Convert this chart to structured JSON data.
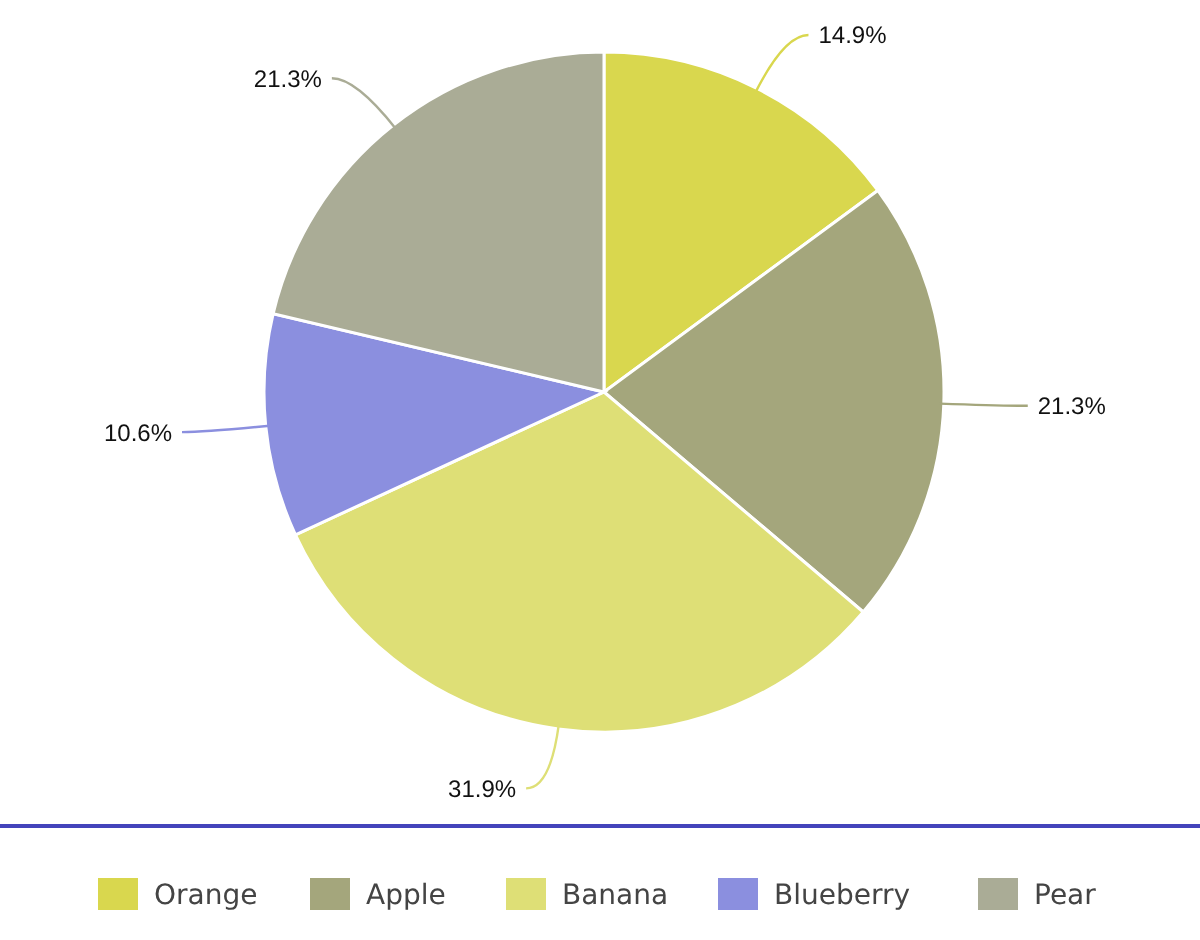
{
  "chart_data": {
    "type": "pie",
    "categories": [
      "Orange",
      "Apple",
      "Banana",
      "Blueberry",
      "Pear"
    ],
    "values": [
      14.9,
      21.3,
      31.9,
      10.6,
      21.3
    ],
    "colors": [
      "#d9d74e",
      "#a4a67c",
      "#dedf76",
      "#8b8fdf",
      "#aaac96"
    ],
    "value_labels": [
      "14.9%",
      "21.3%",
      "31.9%",
      "10.6%",
      "21.3%"
    ],
    "legend": "bottom"
  }
}
